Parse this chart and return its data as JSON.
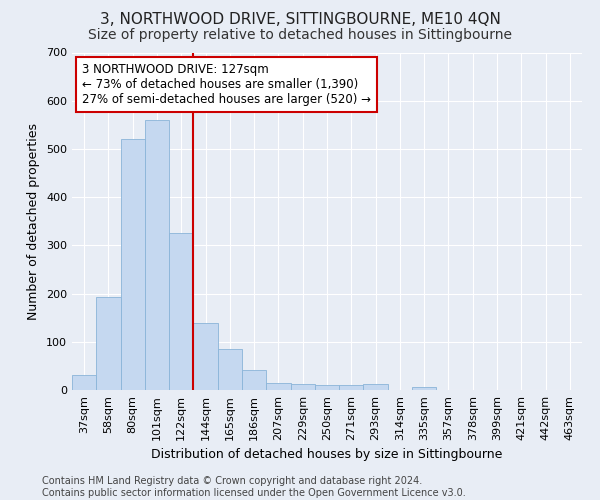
{
  "title": "3, NORTHWOOD DRIVE, SITTINGBOURNE, ME10 4QN",
  "subtitle": "Size of property relative to detached houses in Sittingbourne",
  "xlabel": "Distribution of detached houses by size in Sittingbourne",
  "ylabel": "Number of detached properties",
  "categories": [
    "37sqm",
    "58sqm",
    "80sqm",
    "101sqm",
    "122sqm",
    "144sqm",
    "165sqm",
    "186sqm",
    "207sqm",
    "229sqm",
    "250sqm",
    "271sqm",
    "293sqm",
    "314sqm",
    "335sqm",
    "357sqm",
    "378sqm",
    "399sqm",
    "421sqm",
    "442sqm",
    "463sqm"
  ],
  "values": [
    32,
    192,
    520,
    560,
    325,
    140,
    85,
    42,
    14,
    12,
    10,
    10,
    12,
    0,
    7,
    0,
    0,
    0,
    0,
    0,
    0
  ],
  "bar_color": "#c5d8f0",
  "bar_edge_color": "#8ab4d8",
  "bg_color": "#e8edf5",
  "vline_bar_index": 4,
  "vline_color": "#cc0000",
  "annotation_line1": "3 NORTHWOOD DRIVE: 127sqm",
  "annotation_line2": "← 73% of detached houses are smaller (1,390)",
  "annotation_line3": "27% of semi-detached houses are larger (520) →",
  "annotation_box_color": "#ffffff",
  "annotation_box_edge_color": "#cc0000",
  "ylim": [
    0,
    700
  ],
  "yticks": [
    0,
    100,
    200,
    300,
    400,
    500,
    600,
    700
  ],
  "footer_line1": "Contains HM Land Registry data © Crown copyright and database right 2024.",
  "footer_line2": "Contains public sector information licensed under the Open Government Licence v3.0.",
  "title_fontsize": 11,
  "subtitle_fontsize": 10,
  "xlabel_fontsize": 9,
  "ylabel_fontsize": 9,
  "annot_fontsize": 8.5,
  "tick_fontsize": 8,
  "footer_fontsize": 7
}
